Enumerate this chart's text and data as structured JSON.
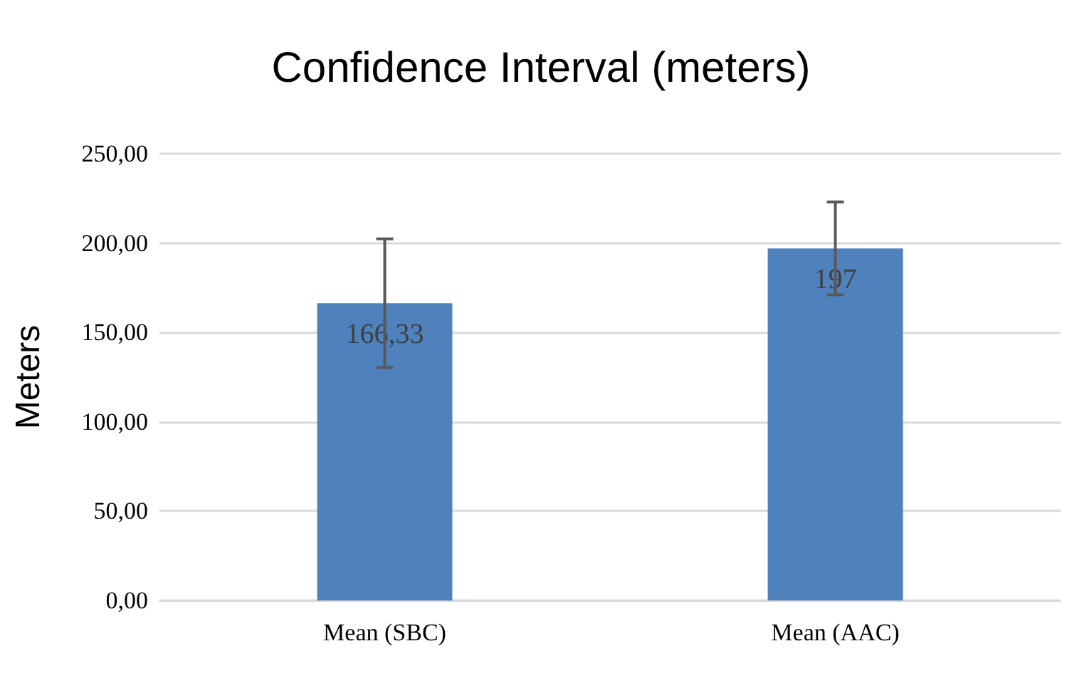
{
  "chart_data": {
    "type": "bar",
    "title": "Confidence Interval (meters)",
    "ylabel": "Meters",
    "categories": [
      "Mean (SBC)",
      "Mean (AAC)"
    ],
    "series": [
      {
        "color": "#4f81bd",
        "values": [
          166.33,
          197
        ],
        "errors": [
          36,
          26
        ],
        "value_labels": [
          "166,33",
          "197"
        ]
      }
    ],
    "ylim": [
      0,
      250
    ],
    "yticks": [
      {
        "value": 0,
        "label": "0,00"
      },
      {
        "value": 50,
        "label": "50,00"
      },
      {
        "value": 100,
        "label": "100,00"
      },
      {
        "value": 150,
        "label": "150,00"
      },
      {
        "value": 200,
        "label": "200,00"
      },
      {
        "value": 250,
        "label": "250,00"
      }
    ],
    "grid": "y"
  }
}
